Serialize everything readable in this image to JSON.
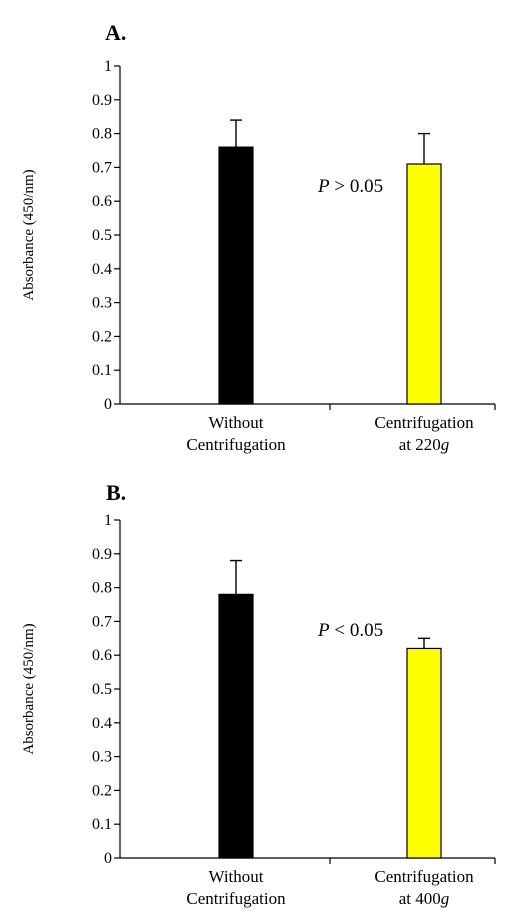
{
  "chart_data": [
    {
      "type": "bar",
      "panel_label": "A.",
      "categories": [
        {
          "lines": [
            "Without",
            "Centrifugation"
          ]
        },
        {
          "lines": [
            "Centrifugation",
            "at 220"
          ],
          "suffix_italic": "g"
        }
      ],
      "values": [
        0.76,
        0.71
      ],
      "errors": [
        0.08,
        0.09
      ],
      "colors": [
        "#000000",
        "#ffff00"
      ],
      "ylabel": "Absorbance (450/nm)",
      "ylim": [
        0,
        1
      ],
      "yticks": [
        "0",
        "0.1",
        "0.2",
        "0.3",
        "0.4",
        "0.5",
        "0.6",
        "0.7",
        "0.8",
        "0.9",
        "1"
      ],
      "annotation": {
        "italic": "P",
        "text": " > 0.05"
      },
      "grid": false
    },
    {
      "type": "bar",
      "panel_label": "B.",
      "categories": [
        {
          "lines": [
            "Without",
            "Centrifugation"
          ]
        },
        {
          "lines": [
            "Centrifugation",
            "at 400"
          ],
          "suffix_italic": "g"
        }
      ],
      "values": [
        0.78,
        0.62
      ],
      "errors": [
        0.1,
        0.03
      ],
      "colors": [
        "#000000",
        "#ffff00"
      ],
      "ylabel": "Absorbance (450/nm)",
      "ylim": [
        0,
        1
      ],
      "yticks": [
        "0",
        "0.1",
        "0.2",
        "0.3",
        "0.4",
        "0.5",
        "0.6",
        "0.7",
        "0.8",
        "0.9",
        "1"
      ],
      "annotation": {
        "italic": "P",
        "text": " < 0.05"
      },
      "grid": false
    }
  ]
}
